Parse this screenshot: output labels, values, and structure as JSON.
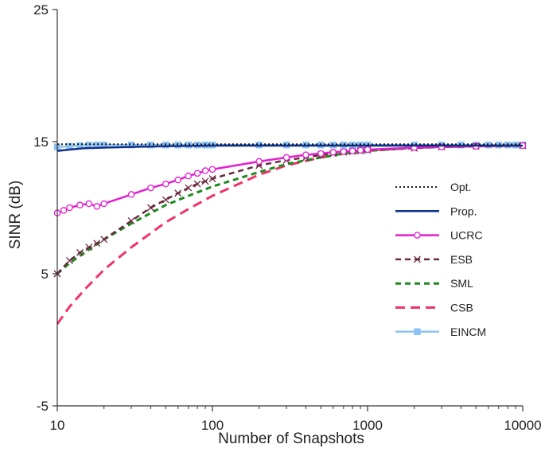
{
  "chart_data": {
    "type": "line",
    "title": "",
    "xlabel": "Number of Snapshots",
    "ylabel": "SINR (dB)",
    "xscale": "log",
    "xlim": [
      10,
      10000
    ],
    "ylim": [
      -5,
      25
    ],
    "xticks": [
      10,
      100,
      1000,
      10000
    ],
    "xtick_labels": [
      "10",
      "100",
      "1000",
      "10000"
    ],
    "yticks": [
      -5,
      5,
      15,
      25
    ],
    "ytick_labels": [
      "-5",
      "5",
      "15",
      "25"
    ],
    "legend_position": "right",
    "colors": {
      "Opt.": "#1a1a1a",
      "Prop.": "#0f2f8c",
      "UCRC": "#e51ecf",
      "ESB": "#6b2a40",
      "SML": "#1f8a1f",
      "CSB": "#f0336b",
      "EINCM": "#8cc3f2"
    },
    "series": [
      {
        "name": "Opt.",
        "style": "dotted",
        "x": [
          10,
          20,
          50,
          100,
          200,
          500,
          1000,
          2000,
          5000,
          10000
        ],
        "y": [
          14.8,
          14.8,
          14.8,
          14.8,
          14.8,
          14.8,
          14.8,
          14.8,
          14.8,
          14.8
        ]
      },
      {
        "name": "Prop.",
        "style": "solid",
        "x": [
          10,
          12,
          15,
          20,
          30,
          50,
          100,
          200,
          500,
          1000,
          2000,
          5000,
          10000
        ],
        "y": [
          14.3,
          14.4,
          14.5,
          14.55,
          14.6,
          14.65,
          14.7,
          14.7,
          14.7,
          14.7,
          14.7,
          14.7,
          14.7
        ]
      },
      {
        "name": "UCRC",
        "style": "solid",
        "marker": "circle",
        "x": [
          10,
          11,
          12,
          14,
          16,
          18,
          20,
          30,
          40,
          50,
          60,
          70,
          80,
          90,
          100,
          200,
          300,
          400,
          500,
          600,
          700,
          800,
          900,
          1000,
          2000,
          3000,
          5000,
          10000
        ],
        "y": [
          9.6,
          9.8,
          10.0,
          10.2,
          10.3,
          10.1,
          10.3,
          11.0,
          11.5,
          11.8,
          12.1,
          12.4,
          12.6,
          12.8,
          12.9,
          13.5,
          13.8,
          14.0,
          14.1,
          14.2,
          14.25,
          14.3,
          14.35,
          14.4,
          14.55,
          14.6,
          14.65,
          14.7
        ]
      },
      {
        "name": "ESB",
        "style": "dashed",
        "marker": "x",
        "x": [
          10,
          12,
          14,
          16,
          18,
          20,
          30,
          40,
          50,
          60,
          70,
          80,
          90,
          100,
          200,
          300,
          400,
          500,
          600,
          700,
          800,
          900,
          1000,
          2000,
          3000,
          5000,
          10000
        ],
        "y": [
          5.0,
          6.0,
          6.6,
          7.0,
          7.3,
          7.6,
          9.0,
          10.0,
          10.6,
          11.1,
          11.5,
          11.8,
          12.0,
          12.2,
          13.2,
          13.6,
          13.8,
          14.0,
          14.1,
          14.2,
          14.25,
          14.3,
          14.35,
          14.5,
          14.6,
          14.65,
          14.7
        ]
      },
      {
        "name": "SML",
        "style": "dashed",
        "x": [
          10,
          12,
          15,
          20,
          30,
          50,
          70,
          100,
          200,
          300,
          500,
          700,
          1000,
          2000,
          5000,
          10000
        ],
        "y": [
          5.0,
          5.8,
          6.6,
          7.6,
          8.8,
          10.2,
          10.9,
          11.6,
          12.7,
          13.3,
          13.8,
          14.1,
          14.3,
          14.55,
          14.65,
          14.7
        ]
      },
      {
        "name": "CSB",
        "style": "long-dashed",
        "x": [
          10,
          12,
          15,
          20,
          30,
          50,
          70,
          100,
          200,
          300,
          500,
          700,
          1000,
          2000,
          5000,
          10000
        ],
        "y": [
          1.2,
          2.5,
          3.8,
          5.3,
          7.0,
          8.9,
          9.9,
          10.9,
          12.5,
          13.2,
          13.8,
          14.1,
          14.3,
          14.55,
          14.65,
          14.7
        ]
      },
      {
        "name": "EINCM",
        "style": "solid",
        "marker": "square",
        "x": [
          10,
          12,
          14,
          16,
          18,
          20,
          30,
          40,
          50,
          60,
          70,
          80,
          90,
          100,
          200,
          300,
          400,
          500,
          600,
          700,
          800,
          900,
          1000,
          2000,
          3000,
          4000,
          5000,
          6000,
          7000,
          8000,
          9000,
          10000
        ],
        "y": [
          14.6,
          14.65,
          14.7,
          14.75,
          14.75,
          14.75,
          14.75,
          14.75,
          14.75,
          14.75,
          14.75,
          14.75,
          14.75,
          14.75,
          14.75,
          14.75,
          14.75,
          14.75,
          14.75,
          14.75,
          14.75,
          14.75,
          14.75,
          14.75,
          14.75,
          14.75,
          14.75,
          14.75,
          14.75,
          14.75,
          14.75,
          14.75
        ]
      }
    ]
  }
}
